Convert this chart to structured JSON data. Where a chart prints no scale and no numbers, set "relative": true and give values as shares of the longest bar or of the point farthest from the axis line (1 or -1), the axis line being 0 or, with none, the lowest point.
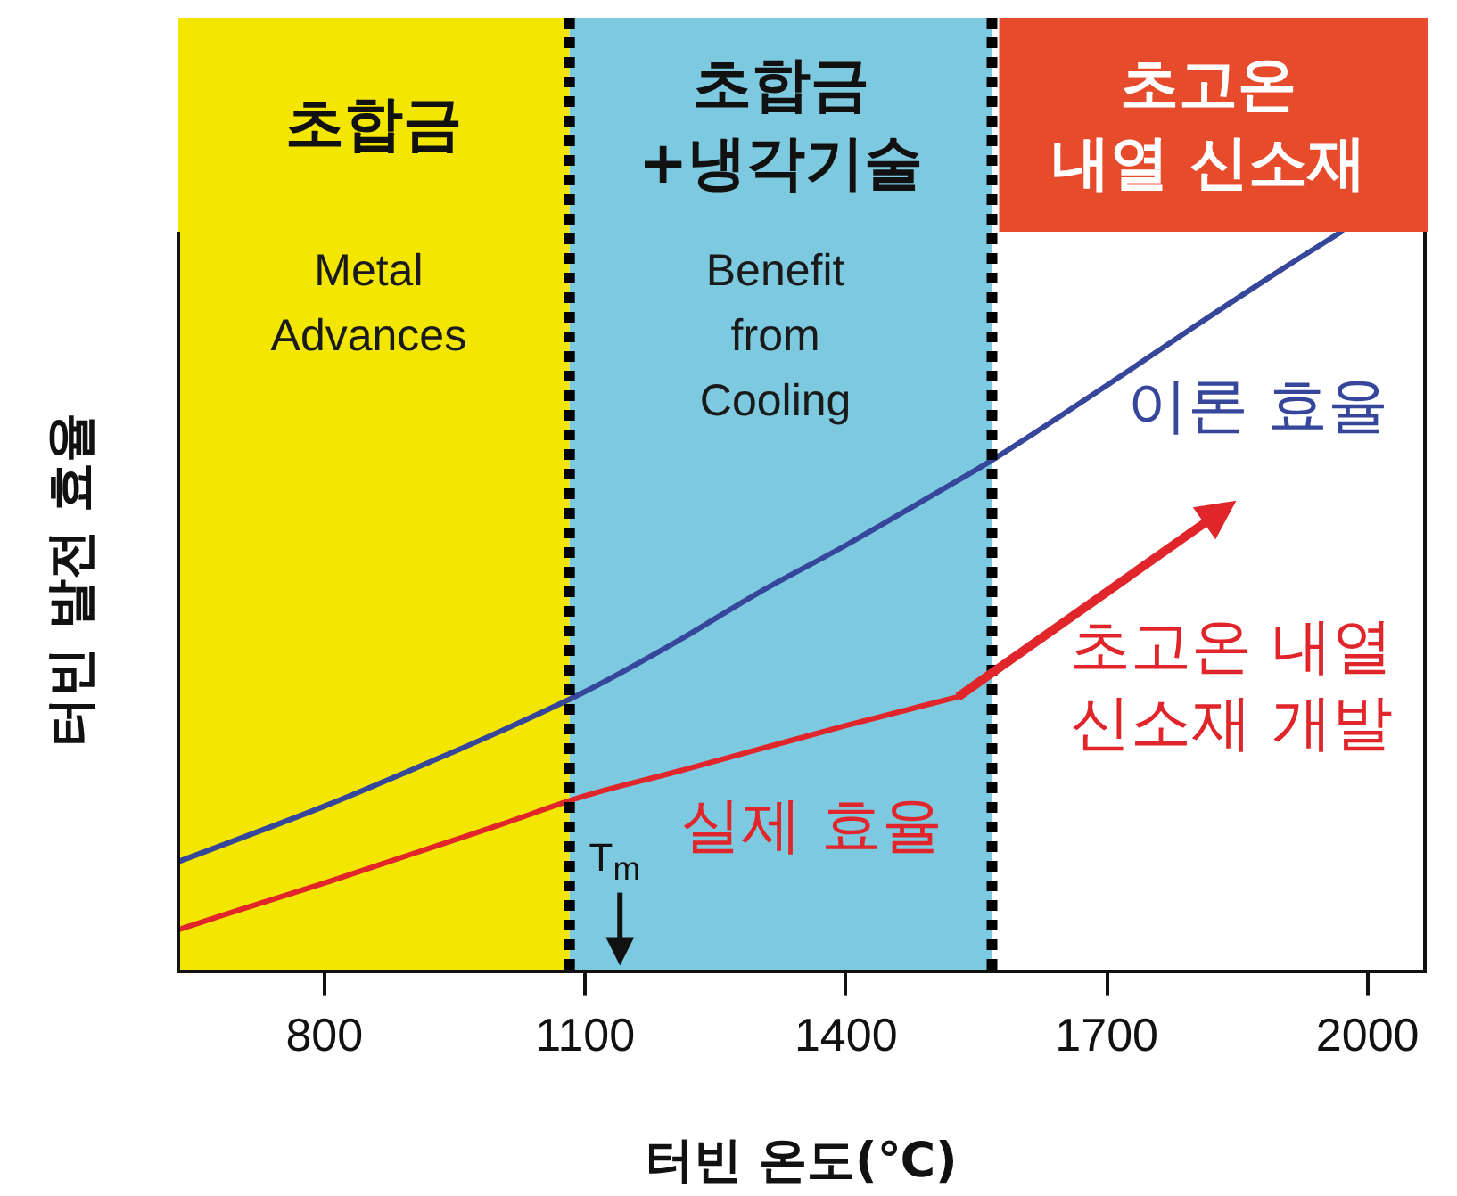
{
  "chart_data": {
    "type": "line",
    "xlabel": "터빈 온도(℃)",
    "ylabel": "터빈 발전 효율",
    "relative": true,
    "xlim": [
      632,
      2066
    ],
    "xticks": [
      800,
      1100,
      1400,
      1700,
      2000
    ],
    "series": [
      {
        "name": "이론 효율",
        "color": "#36469a",
        "x": [
          632,
          700,
          800,
          900,
          1000,
          1100,
          1200,
          1300,
          1400,
          1500,
          1568,
          1700,
          1800,
          1900,
          1970
        ],
        "values": [
          0.148,
          0.178,
          0.223,
          0.272,
          0.323,
          0.378,
          0.442,
          0.512,
          0.576,
          0.644,
          0.691,
          0.792,
          0.871,
          0.948,
          1
        ]
      },
      {
        "name": "실제 효율",
        "color": "#e0262b",
        "x": [
          632,
          700,
          800,
          900,
          1000,
          1100,
          1200,
          1300,
          1400,
          1529
        ],
        "values": [
          0.056,
          0.082,
          0.119,
          0.158,
          0.197,
          0.237,
          0.268,
          0.3,
          0.332,
          0.371
        ]
      }
    ],
    "bands": [
      {
        "axis": "x",
        "from": 632,
        "to": 1082,
        "label": "Metal\nAdvances",
        "color": "#f3e600"
      },
      {
        "axis": "x",
        "from": 1082,
        "to": 1568,
        "label": "Benefit\nfrom\nCooling",
        "color": "#7dcae0"
      }
    ],
    "ref_lines": [
      {
        "axis": "x",
        "value": 1082,
        "color": "#000000",
        "line_style": "dotted"
      },
      {
        "axis": "x",
        "value": 1568,
        "color": "#000000",
        "line_style": "dotted"
      }
    ],
    "annotations": [
      "초합금",
      "초합금\n+냉각기술",
      "초고온\n내열 신소재",
      "초고온 내열\n신소재 개발",
      {
        "text": "T$_{m}$",
        "x": 1140,
        "y": 0
      }
    ]
  }
}
